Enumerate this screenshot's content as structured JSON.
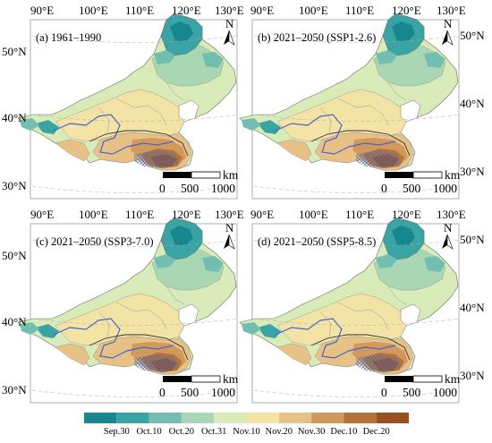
{
  "panels": [
    {
      "title": "(a) 1961–1990",
      "lon_labels": [
        "90°E",
        "100°E",
        "110°E",
        "120°E",
        "130°E"
      ],
      "lat_labels": [
        "50°N",
        "40°N",
        "30°N"
      ]
    },
    {
      "title": "(b) 2021–2050 (SSP1-2.6)",
      "lon_labels": [
        "90°E",
        "100°E",
        "110°E",
        "120°E",
        "130°E"
      ],
      "lat_labels": [
        "50°N",
        "40°N",
        "30°N"
      ]
    },
    {
      "title": "(c) 2021–2050 (SSP3-7.0)",
      "lon_labels": [
        "90°E",
        "100°E",
        "110°E",
        "120°E",
        "130°E"
      ],
      "lat_labels": [
        "50°N",
        "40°N",
        "30°N"
      ]
    },
    {
      "title": "(d) 2021–2050 (SSP5-8.5)",
      "lon_labels": [
        "90°E",
        "100°E",
        "110°E",
        "120°E",
        "130°E"
      ],
      "lat_labels": [
        "50°N",
        "40°N",
        "30°N"
      ]
    }
  ],
  "north_arrow": "N",
  "scale_bar": {
    "ticks": [
      "0",
      "500",
      "1000"
    ],
    "unit": "km"
  },
  "legend": {
    "labels": [
      "Sep.30",
      "Oct.10",
      "Oct.20",
      "Oct.31",
      "Nov.10",
      "Nov.20",
      "Nov.30",
      "Dec.10",
      "Dec.20"
    ],
    "colors": [
      "#17868f",
      "#3aa4a5",
      "#72bfb2",
      "#a9d7b4",
      "#d9ebb9",
      "#f3e4a6",
      "#e8c186",
      "#d19a5c",
      "#b77238",
      "#9a4f1f"
    ]
  }
}
